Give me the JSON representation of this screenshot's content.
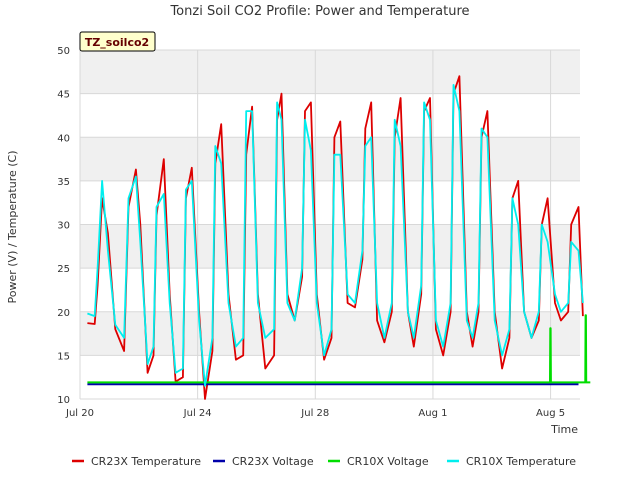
{
  "chart_data": {
    "type": "line",
    "title": "Tonzi Soil CO2 Profile: Power and Temperature",
    "site_label": "TZ_soilco2",
    "xlabel": "Time",
    "ylabel": "Power (V) / Temperature (C)",
    "ylim": [
      10,
      50
    ],
    "yticks": [
      10,
      15,
      20,
      25,
      30,
      35,
      40,
      45,
      50
    ],
    "xlim": [
      20.0,
      37.0
    ],
    "xticks": [
      {
        "value": 20,
        "label": "Jul 20"
      },
      {
        "value": 24,
        "label": "Jul 24"
      },
      {
        "value": 28,
        "label": "Jul 28"
      },
      {
        "value": 32,
        "label": "Aug 1"
      },
      {
        "value": 36,
        "label": "Aug 5"
      }
    ],
    "grid": true,
    "legend_position": "bottom",
    "series": [
      {
        "name": "CR23X Temperature",
        "color": "#dd0000",
        "x": [
          20.25,
          20.5,
          20.6,
          20.75,
          20.95,
          21.2,
          21.5,
          21.65,
          21.9,
          22.05,
          22.3,
          22.5,
          22.6,
          22.85,
          23.05,
          23.25,
          23.5,
          23.6,
          23.8,
          24.05,
          24.25,
          24.5,
          24.6,
          24.8,
          25.05,
          25.3,
          25.55,
          25.65,
          25.85,
          26.05,
          26.3,
          26.6,
          26.7,
          26.85,
          27.05,
          27.3,
          27.55,
          27.65,
          27.85,
          28.05,
          28.3,
          28.55,
          28.65,
          28.85,
          29.1,
          29.35,
          29.6,
          29.7,
          29.9,
          30.1,
          30.35,
          30.6,
          30.7,
          30.9,
          31.15,
          31.35,
          31.6,
          31.7,
          31.9,
          32.1,
          32.35,
          32.6,
          32.7,
          32.9,
          33.15,
          33.35,
          33.55,
          33.65,
          33.85,
          34.1,
          34.35,
          34.6,
          34.7,
          34.9,
          35.1,
          35.35,
          35.6,
          35.7,
          35.9,
          36.15,
          36.35,
          36.6,
          36.7,
          36.95,
          37.1
        ],
        "y": [
          18.7,
          18.6,
          23,
          33,
          29,
          18,
          15.5,
          32,
          36.3,
          30,
          13,
          15,
          31,
          37.5,
          22,
          12,
          12.5,
          33,
          36.5,
          20,
          10,
          15.5,
          37,
          41.5,
          22,
          14.5,
          15,
          38,
          43.5,
          22,
          13.5,
          15,
          42,
          45,
          22,
          19,
          24,
          43,
          44,
          22,
          14.5,
          17,
          40,
          41.8,
          21,
          20.5,
          26,
          41,
          44,
          19,
          16.5,
          20,
          40,
          44.5,
          20,
          16,
          22,
          43,
          44.5,
          18,
          15,
          20,
          45,
          47,
          20,
          16,
          20,
          40,
          43,
          20,
          13.5,
          17,
          33,
          35,
          20,
          17,
          19,
          30,
          33,
          21,
          19,
          20,
          30,
          32,
          19.5
        ]
      },
      {
        "name": "CR23X Voltage",
        "color": "#0000aa",
        "x": [
          20.25,
          36.95
        ],
        "y": [
          11.7,
          11.7
        ]
      },
      {
        "name": "CR10X Voltage",
        "color": "#00dd00",
        "x": [
          20.25,
          35.98,
          35.99,
          36.0,
          36.01,
          36.02,
          37.18,
          37.19,
          37.2,
          37.21,
          37.22,
          37.35
        ],
        "y": [
          11.9,
          11.9,
          18.1,
          18.1,
          11.9,
          11.9,
          11.9,
          19.6,
          19.6,
          11.9,
          11.9,
          11.9
        ]
      },
      {
        "name": "CR10X Temperature",
        "color": "#00eeee",
        "x": [
          20.25,
          20.5,
          20.6,
          20.75,
          20.95,
          21.2,
          21.5,
          21.65,
          21.9,
          22.05,
          22.3,
          22.5,
          22.6,
          22.85,
          23.05,
          23.25,
          23.5,
          23.6,
          23.8,
          24.05,
          24.25,
          24.5,
          24.6,
          24.8,
          25.05,
          25.3,
          25.55,
          25.65,
          25.85,
          26.05,
          26.3,
          26.6,
          26.7,
          26.85,
          27.05,
          27.3,
          27.55,
          27.65,
          27.85,
          28.05,
          28.3,
          28.55,
          28.65,
          28.85,
          29.1,
          29.35,
          29.6,
          29.7,
          29.9,
          30.1,
          30.35,
          30.6,
          30.7,
          30.9,
          31.15,
          31.35,
          31.6,
          31.7,
          31.9,
          32.1,
          32.35,
          32.6,
          32.7,
          32.9,
          33.15,
          33.35,
          33.55,
          33.65,
          33.85,
          34.1,
          34.35,
          34.6,
          34.7,
          34.9,
          35.1,
          35.35,
          35.6,
          35.7,
          35.9,
          36.15,
          36.35,
          36.6,
          36.7,
          36.95,
          37.1
        ],
        "y": [
          19.8,
          19.5,
          25,
          35,
          27,
          18.5,
          17,
          33,
          35.5,
          28,
          14,
          16,
          32,
          33.5,
          21,
          13,
          13.5,
          34,
          35,
          19,
          11.5,
          17,
          39,
          37,
          21,
          16,
          17,
          43,
          43,
          21,
          17,
          18,
          44,
          42,
          21,
          19,
          25,
          42,
          38.5,
          21,
          15,
          18,
          38,
          38,
          22,
          21,
          27,
          39,
          40,
          21,
          17,
          21,
          42,
          39,
          20,
          17,
          23,
          44,
          42,
          19,
          16,
          21,
          46,
          43,
          19,
          17,
          21,
          41,
          40,
          19,
          15,
          18,
          33,
          30,
          20,
          17,
          20,
          30,
          28,
          22,
          20,
          21,
          28,
          27,
          21
        ]
      }
    ]
  }
}
